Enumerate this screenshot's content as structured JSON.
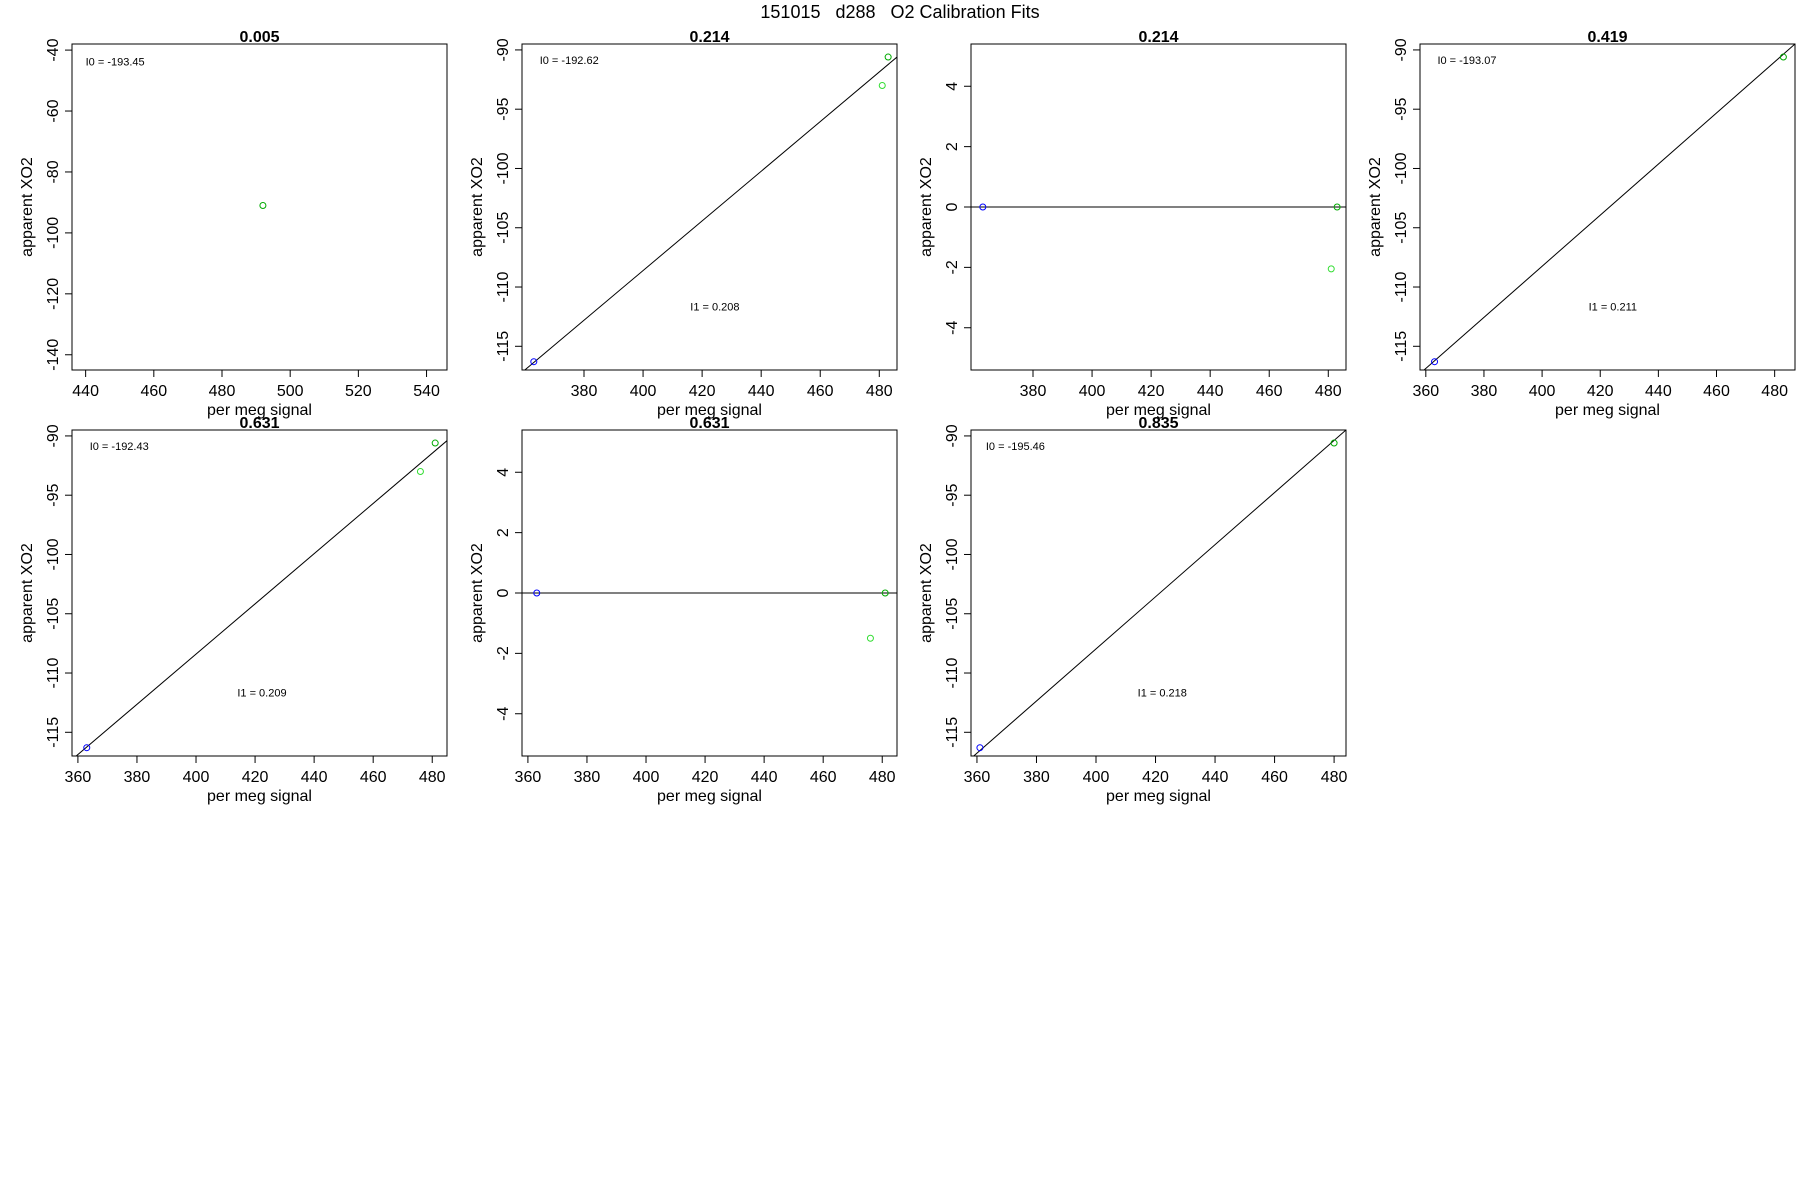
{
  "page": {
    "title": "151015   d288   O2 Calibration Fits"
  },
  "colors": {
    "blue_point": "#0000ff",
    "green_point": "#00aa00",
    "light_green_point": "#33dd33",
    "line": "#000000"
  },
  "chart_data": [
    {
      "type": "scatter",
      "title": "0.005",
      "xlabel": "per meg signal",
      "ylabel": "apparent XO2",
      "xlim": [
        436,
        546
      ],
      "ylim": [
        -145,
        -38
      ],
      "xticks": [
        440,
        460,
        480,
        500,
        520,
        540
      ],
      "yticks": [
        -40,
        -60,
        -80,
        -100,
        -120,
        -140
      ],
      "annotations": [
        {
          "text": "I0 =  -193.45",
          "x": 440,
          "y": -45
        }
      ],
      "points": [
        {
          "x": 492,
          "y": -91,
          "color": "#00aa00"
        }
      ],
      "fit_line": null
    },
    {
      "type": "scatter",
      "title": "0.214",
      "xlabel": "per meg signal",
      "ylabel": "apparent XO2",
      "xlim": [
        359,
        486
      ],
      "ylim": [
        -117,
        -89.5
      ],
      "xticks": [
        380,
        400,
        420,
        440,
        460,
        480
      ],
      "yticks": [
        -90,
        -95,
        -100,
        -105,
        -110,
        -115
      ],
      "annotations": [
        {
          "text": "I0 =  -192.62",
          "x": 365,
          "y": -91.2
        },
        {
          "text": "I1 =  0.208",
          "x": 416,
          "y": -112
        }
      ],
      "points": [
        {
          "x": 363,
          "y": -116.3,
          "color": "#0000ff"
        },
        {
          "x": 483,
          "y": -90.6,
          "color": "#00aa00"
        },
        {
          "x": 481,
          "y": -93.0,
          "color": "#33dd33"
        }
      ],
      "fit_line": [
        [
          359,
          -117.2
        ],
        [
          486,
          -90.6
        ]
      ]
    },
    {
      "type": "scatter",
      "title": "0.214",
      "xlabel": "per meg signal",
      "ylabel": "apparent XO2",
      "xlim": [
        359,
        486
      ],
      "ylim": [
        -5.4,
        5.4
      ],
      "xticks": [
        380,
        400,
        420,
        440,
        460,
        480
      ],
      "yticks": [
        4,
        2,
        0,
        -2,
        -4
      ],
      "annotations": [],
      "points": [
        {
          "x": 363,
          "y": 0,
          "color": "#0000ff"
        },
        {
          "x": 483,
          "y": 0,
          "color": "#00aa00"
        },
        {
          "x": 481,
          "y": -2.05,
          "color": "#33dd33"
        }
      ],
      "fit_line": [
        [
          359,
          0
        ],
        [
          486,
          0
        ]
      ]
    },
    {
      "type": "scatter",
      "title": "0.419",
      "xlabel": "per meg signal",
      "ylabel": "apparent XO2",
      "xlim": [
        358,
        487
      ],
      "ylim": [
        -117,
        -89.5
      ],
      "xticks": [
        360,
        380,
        400,
        420,
        440,
        460,
        480
      ],
      "yticks": [
        -90,
        -95,
        -100,
        -105,
        -110,
        -115
      ],
      "annotations": [
        {
          "text": "I0 =  -193.07",
          "x": 364,
          "y": -91.2
        },
        {
          "text": "I1 =  0.211",
          "x": 416,
          "y": -112
        }
      ],
      "points": [
        {
          "x": 363,
          "y": -116.3,
          "color": "#0000ff"
        },
        {
          "x": 483,
          "y": -90.6,
          "color": "#00aa00"
        }
      ],
      "fit_line": [
        [
          358,
          -117.3
        ],
        [
          487,
          -89.5
        ]
      ]
    },
    {
      "type": "scatter",
      "title": "0.631",
      "xlabel": "per meg signal",
      "ylabel": "apparent XO2",
      "xlim": [
        358,
        485
      ],
      "ylim": [
        -117,
        -89.5
      ],
      "xticks": [
        360,
        380,
        400,
        420,
        440,
        460,
        480
      ],
      "yticks": [
        -90,
        -95,
        -100,
        -105,
        -110,
        -115
      ],
      "annotations": [
        {
          "text": "I0 =  -192.43",
          "x": 364,
          "y": -91.2
        },
        {
          "text": "I1 =  0.209",
          "x": 414,
          "y": -112
        }
      ],
      "points": [
        {
          "x": 363,
          "y": -116.3,
          "color": "#0000ff"
        },
        {
          "x": 481,
          "y": -90.6,
          "color": "#00aa00"
        },
        {
          "x": 476,
          "y": -93.0,
          "color": "#33dd33"
        }
      ],
      "fit_line": [
        [
          358,
          -117.3
        ],
        [
          485,
          -90.4
        ]
      ]
    },
    {
      "type": "scatter",
      "title": "0.631",
      "xlabel": "per meg signal",
      "ylabel": "apparent XO2",
      "xlim": [
        358,
        485
      ],
      "ylim": [
        -5.4,
        5.4
      ],
      "xticks": [
        360,
        380,
        400,
        420,
        440,
        460,
        480
      ],
      "yticks": [
        4,
        2,
        0,
        -2,
        -4
      ],
      "annotations": [],
      "points": [
        {
          "x": 363,
          "y": 0,
          "color": "#0000ff"
        },
        {
          "x": 481,
          "y": 0,
          "color": "#00aa00"
        },
        {
          "x": 476,
          "y": -1.5,
          "color": "#33dd33"
        }
      ],
      "fit_line": [
        [
          358,
          0
        ],
        [
          485,
          0
        ]
      ]
    },
    {
      "type": "scatter",
      "title": "0.835",
      "xlabel": "per meg signal",
      "ylabel": "apparent XO2",
      "xlim": [
        358,
        484
      ],
      "ylim": [
        -117,
        -89.5
      ],
      "xticks": [
        360,
        380,
        400,
        420,
        440,
        460,
        480
      ],
      "yticks": [
        -90,
        -95,
        -100,
        -105,
        -110,
        -115
      ],
      "annotations": [
        {
          "text": "I0 =  -195.46",
          "x": 363,
          "y": -91.2
        },
        {
          "text": "I1 =  0.218",
          "x": 414,
          "y": -112
        }
      ],
      "points": [
        {
          "x": 361,
          "y": -116.3,
          "color": "#0000ff"
        },
        {
          "x": 480,
          "y": -90.6,
          "color": "#00aa00"
        }
      ],
      "fit_line": [
        [
          358,
          -117.2
        ],
        [
          484,
          -89.5
        ]
      ]
    }
  ]
}
